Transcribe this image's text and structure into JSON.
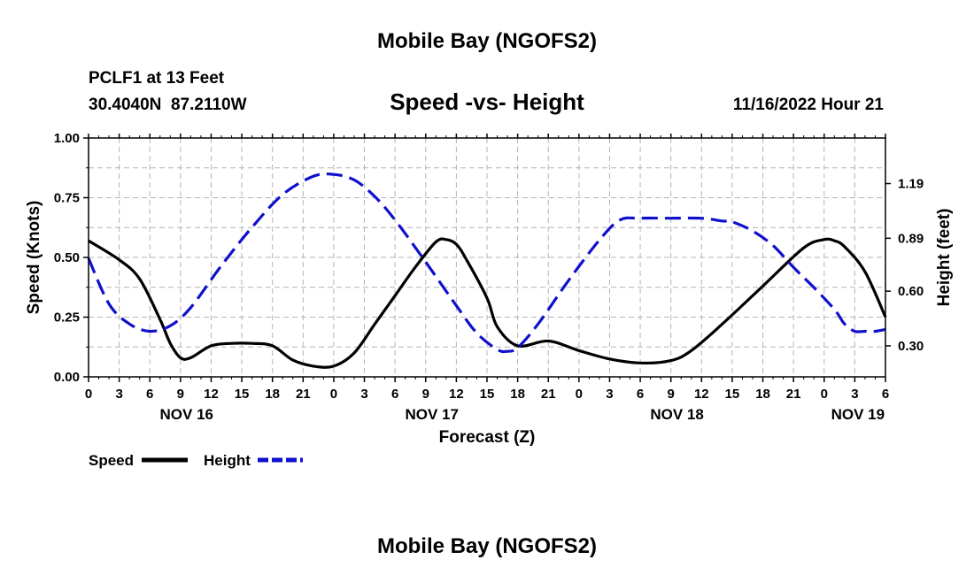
{
  "title": "Mobile Bay (NGOFS2)",
  "station_line": "PCLF1 at 13 Feet",
  "coords_line": "30.4040N  87.2110W",
  "subtitle": "Speed -vs- Height",
  "timestamp": "11/16/2022 Hour 21",
  "footer_title": "Mobile Bay (NGOFS2)",
  "legend": {
    "speed_label": "Speed",
    "height_label": "Height"
  },
  "colors": {
    "speed": "#000000",
    "height": "#1010cc",
    "grid": "#b4b4b4"
  },
  "chart_data": {
    "type": "line",
    "title": "Speed -vs- Height",
    "xlabel": "Forecast (Z)",
    "ylabel": "Speed (Knots)",
    "y2label": "Height (feet)",
    "x_unit": "hours from NOV 16 00Z",
    "xlim": [
      0,
      78
    ],
    "ylim": [
      0,
      1.0
    ],
    "y2lim": [
      0.13,
      1.44
    ],
    "x_ticks": [
      0,
      3,
      6,
      9,
      12,
      15,
      18,
      21,
      24,
      27,
      30,
      33,
      36,
      39,
      42,
      45,
      48,
      51,
      54,
      57,
      60,
      63,
      66,
      69,
      72,
      75,
      78
    ],
    "x_tick_labels": [
      "0",
      "3",
      "6",
      "9",
      "12",
      "15",
      "18",
      "21",
      "0",
      "3",
      "6",
      "9",
      "12",
      "15",
      "18",
      "21",
      "0",
      "3",
      "6",
      "9",
      "12",
      "15",
      "18",
      "21",
      "0",
      "3",
      "6"
    ],
    "date_labels": [
      {
        "x": 9.6,
        "label": "NOV 16"
      },
      {
        "x": 33.6,
        "label": "NOV 17"
      },
      {
        "x": 57.6,
        "label": "NOV 18"
      },
      {
        "x": 75.3,
        "label": "NOV 19"
      }
    ],
    "y_ticks": [
      0.0,
      0.25,
      0.5,
      0.75,
      1.0
    ],
    "y_tick_labels": [
      "0.00",
      "0.25",
      "0.50",
      "0.75",
      "1.00"
    ],
    "y2_ticks": [
      0.3,
      0.6,
      0.89,
      1.19
    ],
    "y2_tick_labels": [
      "0.30",
      "0.60",
      "0.89",
      "1.19"
    ],
    "grid": true,
    "series": [
      {
        "name": "Speed",
        "axis": "left",
        "style": "solid",
        "x": [
          0,
          3,
          5,
          7,
          8,
          9,
          10,
          12,
          14,
          16,
          18,
          20,
          22,
          24,
          26,
          28,
          30,
          32,
          34,
          35,
          36,
          37,
          39,
          40,
          42,
          45,
          48,
          51,
          54,
          57,
          59,
          62,
          66,
          70,
          72,
          73,
          74,
          76,
          78
        ],
        "values": [
          0.57,
          0.49,
          0.41,
          0.24,
          0.14,
          0.08,
          0.08,
          0.13,
          0.14,
          0.14,
          0.13,
          0.07,
          0.045,
          0.045,
          0.1,
          0.22,
          0.34,
          0.46,
          0.565,
          0.575,
          0.555,
          0.49,
          0.33,
          0.21,
          0.13,
          0.15,
          0.11,
          0.075,
          0.058,
          0.068,
          0.11,
          0.22,
          0.38,
          0.54,
          0.575,
          0.57,
          0.545,
          0.44,
          0.25
        ]
      },
      {
        "name": "Height",
        "axis": "right",
        "style": "dashed",
        "x": [
          0,
          2,
          4,
          6,
          8,
          10,
          13,
          16,
          19,
          22,
          24,
          26,
          28,
          30,
          33,
          36,
          38,
          40,
          41,
          42,
          44,
          47,
          50,
          52,
          54,
          57,
          60,
          62,
          63,
          65,
          67,
          69,
          71,
          73,
          74,
          75,
          76,
          77,
          78
        ],
        "values": [
          0.78,
          0.53,
          0.42,
          0.38,
          0.41,
          0.51,
          0.74,
          0.95,
          1.13,
          1.23,
          1.24,
          1.21,
          1.12,
          0.99,
          0.76,
          0.52,
          0.37,
          0.28,
          0.27,
          0.29,
          0.42,
          0.66,
          0.88,
          0.99,
          1.0,
          1.0,
          1.0,
          0.985,
          0.98,
          0.93,
          0.85,
          0.73,
          0.62,
          0.5,
          0.42,
          0.38,
          0.38,
          0.38,
          0.39
        ]
      }
    ]
  }
}
